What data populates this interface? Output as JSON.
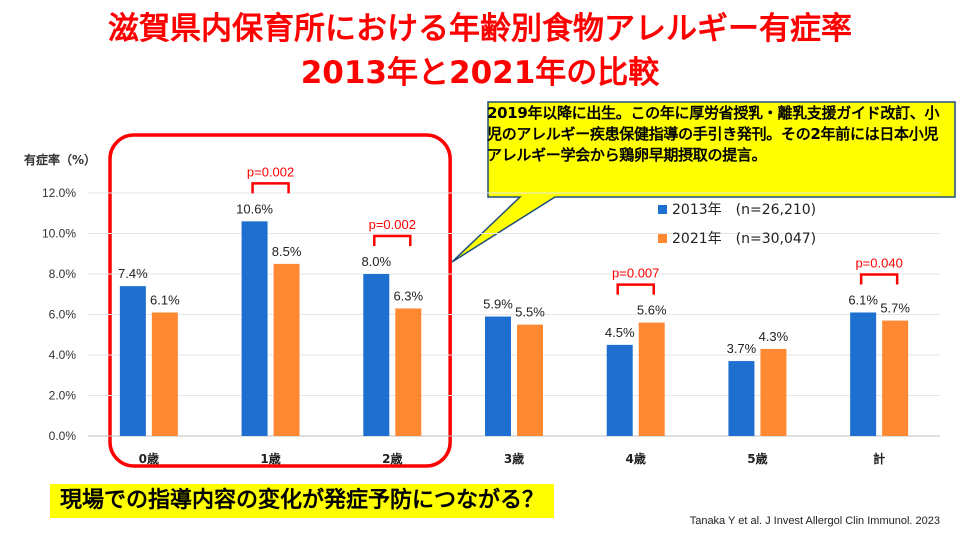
{
  "title": {
    "line1": "滋賀県内保育所における年齢別食物アレルギー有症率",
    "line2": "2013年と2021年の比較"
  },
  "callout": "2019年以降に出生。この年に厚労省授乳・離乳支援ガイド改訂、小児のアレルギー疾患保健指導の手引き発刊。その2年前には日本小児アレルギー学会から鶏卵早期摂取の提言。",
  "bottom_note": "現場での指導内容の変化が発症予防につながる？",
  "citation": "Tanaka Y et al. J Invest Allergol Clin Immunol. 2023",
  "chart_data": {
    "type": "bar",
    "ylabel": "有症率（%）",
    "ylim": [
      0,
      12
    ],
    "yticks": [
      "0.0%",
      "2.0%",
      "4.0%",
      "6.0%",
      "8.0%",
      "10.0%",
      "12.0%"
    ],
    "grid": true,
    "categories": [
      "0歳",
      "1歳",
      "2歳",
      "3歳",
      "4歳",
      "5歳",
      "計"
    ],
    "series": [
      {
        "name": "2013年　(n=26,210)",
        "color": "#1f6fd1",
        "values": [
          7.4,
          10.6,
          8.0,
          5.9,
          4.5,
          3.7,
          6.1
        ],
        "labels": [
          "7.4%",
          "10.6%",
          "8.0%",
          "5.9%",
          "4.5%",
          "3.7%",
          "6.1%"
        ]
      },
      {
        "name": "2021年　(n=30,047)",
        "color": "#ff8833",
        "values": [
          6.1,
          8.5,
          6.3,
          5.5,
          5.6,
          4.3,
          5.7
        ],
        "labels": [
          "6.1%",
          "8.5%",
          "6.3%",
          "5.5%",
          "5.6%",
          "4.3%",
          "5.7%"
        ]
      }
    ],
    "legend_position": "right",
    "pvalues": [
      {
        "category": "1歳",
        "text": "p=0.002"
      },
      {
        "category": "2歳",
        "text": "p=0.002"
      },
      {
        "category": "4歳",
        "text": "p=0.007"
      },
      {
        "category": "計",
        "text": "p=0.040"
      }
    ],
    "highlight_categories": [
      "0歳",
      "1歳",
      "2歳"
    ],
    "annotation_color": "#ff0000"
  }
}
